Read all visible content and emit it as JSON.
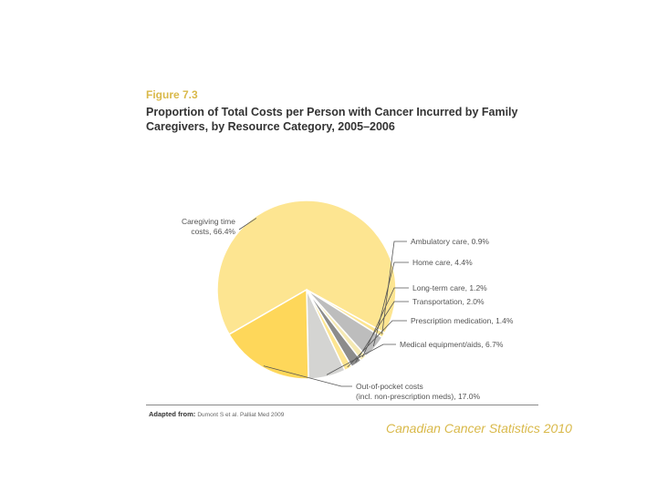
{
  "figure_label": "Figure 7.3",
  "title": "Proportion of Total Costs per Person with Cancer Incurred by Family Caregivers, by Resource Category, 2005–2006",
  "source_label": "Adapted from:",
  "source_citation": "Dumont S et al. Palliat Med 2009",
  "brand": "Canadian Cancer Statistics 2010",
  "colors": {
    "pale_yellow": "#fde591",
    "yellow": "#fed75a",
    "light_gray": "#d4d4d2",
    "mid_gray": "#bdbdbd",
    "dark_gray": "#8c8c8c",
    "pale_cream": "#f5e9b3"
  },
  "chart_data": {
    "type": "pie",
    "title": "Proportion of Total Costs per Person with Cancer Incurred by Family Caregivers, by Resource Category, 2005–2006",
    "slices": [
      {
        "name": "Caregiving time costs",
        "value": 66.4,
        "label_lines": [
          "Caregiving time",
          "costs, 66.4%"
        ],
        "color": "#fde591"
      },
      {
        "name": "Ambulatory care",
        "value": 0.9,
        "label_lines": [
          "Ambulatory care, 0.9%"
        ],
        "color": "#fde591"
      },
      {
        "name": "Home care",
        "value": 4.4,
        "label_lines": [
          "Home care, 4.4%"
        ],
        "color": "#bdbdbd"
      },
      {
        "name": "Long-term care",
        "value": 1.2,
        "label_lines": [
          "Long-term care, 1.2%"
        ],
        "color": "#f5e9b3"
      },
      {
        "name": "Transportation",
        "value": 2.0,
        "label_lines": [
          "Transportation, 2.0%"
        ],
        "color": "#8c8c8c"
      },
      {
        "name": "Prescription medication",
        "value": 1.4,
        "label_lines": [
          "Prescription medication, 1.4%"
        ],
        "color": "#fde591"
      },
      {
        "name": "Medical equipment/aids",
        "value": 6.7,
        "label_lines": [
          "Medical equipment/aids, 6.7%"
        ],
        "color": "#d4d4d2"
      },
      {
        "name": "Out-of-pocket costs (incl. non-prescription meds)",
        "value": 17.0,
        "label_lines": [
          "Out-of-pocket costs",
          "(incl. non-prescription meds), 17.0%"
        ],
        "color": "#fed75a"
      }
    ]
  }
}
